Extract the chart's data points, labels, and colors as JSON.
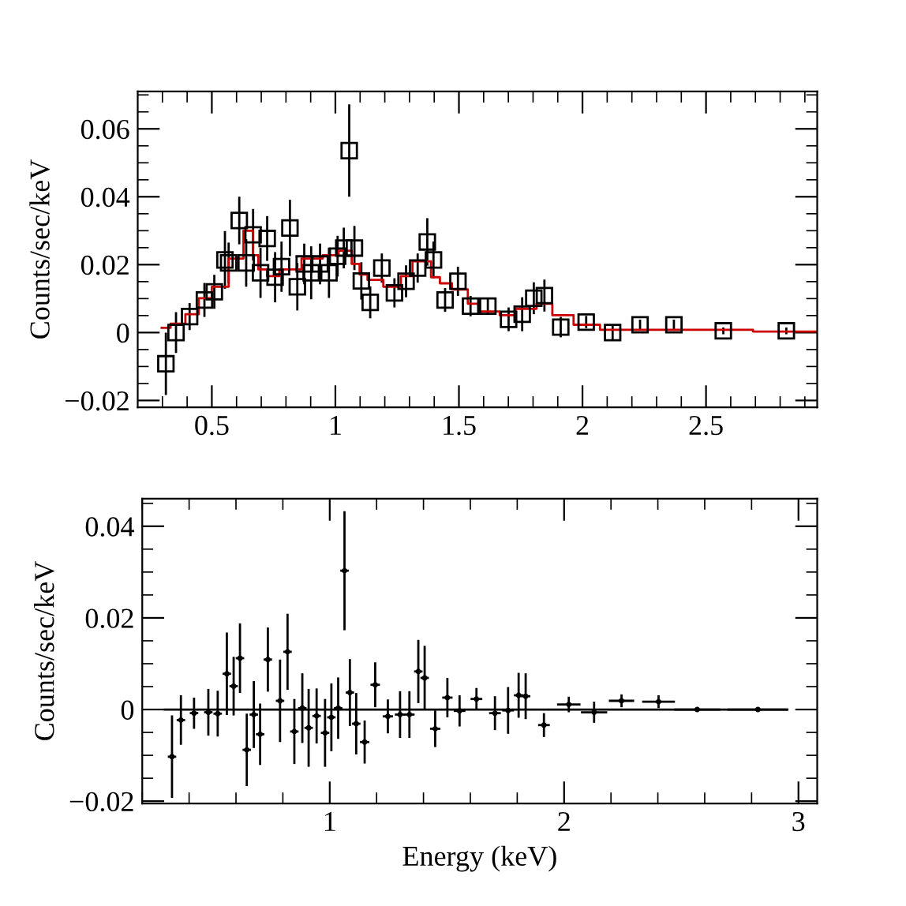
{
  "chart_data": [
    {
      "type": "scatter",
      "ylabel": "Counts/sec/keV",
      "xlim": [
        0.2,
        2.95
      ],
      "ylim": [
        -0.022,
        0.071
      ],
      "xticks": [
        {
          "value": 0.3,
          "label": null
        },
        {
          "value": 0.4,
          "label": null
        },
        0.5,
        {
          "value": 0.6,
          "label": null
        },
        {
          "value": 0.7,
          "label": null
        },
        {
          "value": 0.8,
          "label": null
        },
        {
          "value": 0.9,
          "label": null
        },
        1,
        {
          "value": 1.1,
          "label": null
        },
        {
          "value": 1.2,
          "label": null
        },
        {
          "value": 1.3,
          "label": null
        },
        {
          "value": 1.4,
          "label": null
        },
        1.5,
        {
          "value": 1.6,
          "label": null
        },
        {
          "value": 1.7,
          "label": null
        },
        {
          "value": 1.8,
          "label": null
        },
        {
          "value": 1.9,
          "label": null
        },
        2,
        {
          "value": 2.1,
          "label": null
        },
        {
          "value": 2.2,
          "label": null
        },
        {
          "value": 2.3,
          "label": null
        },
        {
          "value": 2.4,
          "label": null
        },
        2.5,
        {
          "value": 2.6,
          "label": null
        },
        {
          "value": 2.7,
          "label": null
        },
        {
          "value": 2.8,
          "label": null
        },
        {
          "value": 2.9,
          "label": null
        }
      ],
      "yticks": [
        {
          "value": -0.02,
          "label": "−0.02"
        },
        {
          "value": -0.015,
          "label": null
        },
        {
          "value": -0.01,
          "label": null
        },
        {
          "value": -0.005,
          "label": null
        },
        0,
        {
          "value": 0.005,
          "label": null
        },
        {
          "value": 0.01,
          "label": null
        },
        {
          "value": 0.015,
          "label": null
        },
        0.02,
        {
          "value": 0.025,
          "label": null
        },
        {
          "value": 0.03,
          "label": null
        },
        {
          "value": 0.035,
          "label": null
        },
        0.04,
        {
          "value": 0.045,
          "label": null
        },
        {
          "value": 0.05,
          "label": null
        },
        {
          "value": 0.055,
          "label": null
        },
        0.06,
        {
          "value": 0.065,
          "label": null
        },
        {
          "value": 0.07,
          "label": null
        }
      ],
      "series": [
        {
          "marker": "square",
          "color": "#000000",
          "x": [
            0.314,
            0.355,
            0.41,
            0.47,
            0.51,
            0.553,
            0.568,
            0.611,
            0.639,
            0.667,
            0.697,
            0.724,
            0.756,
            0.782,
            0.816,
            0.846,
            0.874,
            0.902,
            0.938,
            0.974,
            1.009,
            1.034,
            1.056,
            1.077,
            1.105,
            1.141,
            1.188,
            1.239,
            1.286,
            1.333,
            1.372,
            1.397,
            1.444,
            1.496,
            1.547,
            1.617,
            1.701,
            1.756,
            1.803,
            1.846,
            1.912,
            2.015,
            2.122,
            2.233,
            2.37,
            2.57,
            2.825
          ],
          "values": [
            -0.0092,
            0,
            0.0047,
            0.0096,
            0.012,
            0.0214,
            0.0205,
            0.033,
            0.0205,
            0.0288,
            0.0176,
            0.0277,
            0.0163,
            0.0194,
            0.0308,
            0.0135,
            0.0202,
            0.0176,
            0.0202,
            0.0176,
            0.0225,
            0.0249,
            0.0536,
            0.0249,
            0.0152,
            0.0089,
            0.019,
            0.0117,
            0.0151,
            0.019,
            0.0267,
            0.0214,
            0.0096,
            0.0151,
            0.0078,
            0.0078,
            0.0039,
            0.0054,
            0.0101,
            0.0109,
            0.0016,
            0.0031,
            0,
            0.0023,
            0.0023,
            0.0005,
            0.0005
          ],
          "errors": [
            0.0092,
            0.006,
            0.004,
            0.005,
            0.005,
            0.0085,
            0.006,
            0.007,
            0.007,
            0.0076,
            0.0074,
            0.0066,
            0.0074,
            0.0074,
            0.0083,
            0.007,
            0.006,
            0.0078,
            0.006,
            0.0074,
            0.006,
            0.006,
            0.0136,
            0.0065,
            0.0055,
            0.0047,
            0.0043,
            0.0043,
            0.0047,
            0.0043,
            0.007,
            0.0054,
            0.0035,
            0.0043,
            0.003,
            0.0024,
            0.0035,
            0.005,
            0.0047,
            0.0047,
            0.003,
            0.0018,
            0.002,
            0.0015,
            0.0015,
            0.001,
            0.001
          ]
        },
        {
          "type": "step",
          "color": "#cc0000",
          "x": [
            0.297,
            0.333,
            0.393,
            0.447,
            0.5,
            0.568,
            0.628,
            0.667,
            0.688,
            0.724,
            0.773,
            0.863,
            0.949,
            1.013,
            1.066,
            1.098,
            1.13,
            1.194,
            1.265,
            1.312,
            1.387,
            1.423,
            1.472,
            1.536,
            1.579,
            1.665,
            1.729,
            1.814,
            1.878,
            1.964,
            2.071,
            2.69,
            2.95
          ],
          "values": [
            0.0014,
            0.0026,
            0.0054,
            0.0101,
            0.0135,
            0.0218,
            0.03,
            0.0228,
            0.0186,
            0.0166,
            0.0186,
            0.0218,
            0.0228,
            0.0241,
            0.0202,
            0.0171,
            0.0155,
            0.0135,
            0.0166,
            0.021,
            0.0163,
            0.0145,
            0.0127,
            0.0085,
            0.0062,
            0.0051,
            0.007,
            0.0085,
            0.0051,
            0.0023,
            0.0008,
            0.0003,
            0.0003
          ]
        }
      ]
    },
    {
      "type": "scatter",
      "ylabel": "Counts/sec/keV",
      "xlabel": "Energy (keV)",
      "xlim": [
        0.2,
        3.08
      ],
      "ylim": [
        -0.0205,
        0.046
      ],
      "xticks": [
        {
          "value": 0.2,
          "label": null
        },
        {
          "value": 0.4,
          "label": null
        },
        {
          "value": 0.6,
          "label": null
        },
        {
          "value": 0.8,
          "label": null
        },
        1,
        {
          "value": 1.2,
          "label": null
        },
        {
          "value": 1.4,
          "label": null
        },
        {
          "value": 1.6,
          "label": null
        },
        {
          "value": 1.8,
          "label": null
        },
        2,
        {
          "value": 2.2,
          "label": null
        },
        {
          "value": 2.4,
          "label": null
        },
        {
          "value": 2.6,
          "label": null
        },
        {
          "value": 2.8,
          "label": null
        },
        3
      ],
      "yticks": [
        {
          "value": -0.02,
          "label": "−0.02"
        },
        {
          "value": -0.015,
          "label": null
        },
        {
          "value": -0.01,
          "label": null
        },
        {
          "value": -0.005,
          "label": null
        },
        0,
        {
          "value": 0.005,
          "label": null
        },
        {
          "value": 0.01,
          "label": null
        },
        {
          "value": 0.015,
          "label": null
        },
        0.02,
        {
          "value": 0.025,
          "label": null
        },
        {
          "value": 0.03,
          "label": null
        },
        {
          "value": 0.035,
          "label": null
        },
        0.04,
        {
          "value": 0.045,
          "label": null
        }
      ],
      "series": [
        {
          "color": "#000000",
          "x": [
            0.327,
            0.365,
            0.421,
            0.482,
            0.522,
            0.561,
            0.59,
            0.617,
            0.646,
            0.676,
            0.703,
            0.736,
            0.788,
            0.82,
            0.849,
            0.883,
            0.91,
            0.944,
            0.98,
            1.007,
            1.036,
            1.063,
            1.086,
            1.113,
            1.149,
            1.194,
            1.248,
            1.3,
            1.34,
            1.378,
            1.405,
            1.45,
            1.502,
            1.554,
            1.626,
            1.705,
            1.761,
            1.806,
            1.836,
            1.914,
            2.02,
            2.128,
            2.245,
            2.403,
            2.568,
            2.827
          ],
          "values": [
            -0.0103,
            -0.0023,
            -0.0008,
            -0.0006,
            -0.0009,
            0.0078,
            0.0051,
            0.0112,
            -0.0088,
            -0.0011,
            -0.0054,
            0.0109,
            0.0019,
            0.0126,
            -0.0048,
            0.0003,
            -0.004,
            -0.0014,
            -0.0051,
            -0.0017,
            0.0003,
            0.0303,
            0.0037,
            -0.0031,
            -0.0071,
            0.0054,
            -0.0015,
            -0.0011,
            -0.0011,
            0.0083,
            0.0069,
            -0.0042,
            0.0026,
            -0.0003,
            0.0023,
            -0.0008,
            -0.0002,
            0.0031,
            0.0029,
            -0.0034,
            0.0011,
            -0.0006,
            0.0019,
            0.0017,
            0,
            0
          ],
          "errors": [
            0.009,
            0.0054,
            0.0034,
            0.0051,
            0.005,
            0.009,
            0.0064,
            0.0076,
            0.0079,
            0.0073,
            0.0067,
            0.007,
            0.009,
            0.0083,
            0.0071,
            0.0076,
            0.0085,
            0.006,
            0.0074,
            0.0074,
            0.0067,
            0.013,
            0.0073,
            0.0067,
            0.0047,
            0.0049,
            0.0037,
            0.0051,
            0.0051,
            0.0069,
            0.007,
            0.004,
            0.0043,
            0.0034,
            0.0024,
            0.0037,
            0.0051,
            0.0049,
            0.005,
            0.0026,
            0.0017,
            0.0023,
            0.0014,
            0.0014,
            0.0004,
            0.0004
          ],
          "xerrors": [
            0.018,
            0.018,
            0.018,
            0.018,
            0.018,
            0.018,
            0.018,
            0.018,
            0.018,
            0.018,
            0.018,
            0.018,
            0.018,
            0.018,
            0.018,
            0.018,
            0.018,
            0.018,
            0.018,
            0.018,
            0.018,
            0.018,
            0.018,
            0.018,
            0.02,
            0.02,
            0.022,
            0.022,
            0.022,
            0.018,
            0.018,
            0.022,
            0.022,
            0.025,
            0.025,
            0.025,
            0.025,
            0.02,
            0.02,
            0.025,
            0.05,
            0.056,
            0.054,
            0.07,
            0.098,
            0.13
          ]
        },
        {
          "type": "line",
          "color": "#000000",
          "x": [
            0.297,
            2.95
          ],
          "values": [
            0,
            0
          ]
        }
      ]
    }
  ]
}
